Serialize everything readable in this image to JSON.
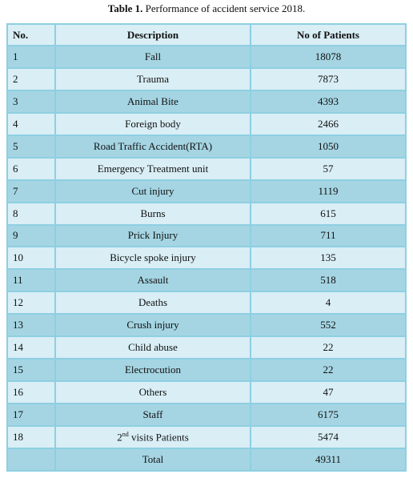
{
  "title": {
    "label": "Table 1.",
    "text": "Performance of accident service 2018."
  },
  "table": {
    "header": [
      "No.",
      "Description",
      "No of Patients"
    ],
    "rows": [
      [
        1,
        "Fall",
        18078
      ],
      [
        2,
        "Trauma",
        7873
      ],
      [
        3,
        "Animal Bite",
        4393
      ],
      [
        4,
        "Foreign body",
        2466
      ],
      [
        5,
        "Road Traffic Accident(RTA)",
        1050
      ],
      [
        6,
        "Emergency Treatment unit",
        57
      ],
      [
        7,
        "Cut injury",
        1119
      ],
      [
        8,
        "Burns",
        615
      ],
      [
        9,
        "Prick Injury",
        711
      ],
      [
        10,
        "Bicycle spoke injury",
        135
      ],
      [
        11,
        "Assault",
        518
      ],
      [
        12,
        "Deaths",
        4
      ],
      [
        13,
        "Crush injury",
        552
      ],
      [
        14,
        "Child abuse",
        22
      ],
      [
        15,
        "Electrocution",
        22
      ],
      [
        16,
        "Others",
        47
      ],
      [
        17,
        "Staff",
        6175
      ],
      [
        18,
        {
          "base": "2",
          "sup": "nd",
          "rest": " visits Patients"
        },
        5474
      ]
    ],
    "total": {
      "label": "Total",
      "value": 49311
    }
  }
}
